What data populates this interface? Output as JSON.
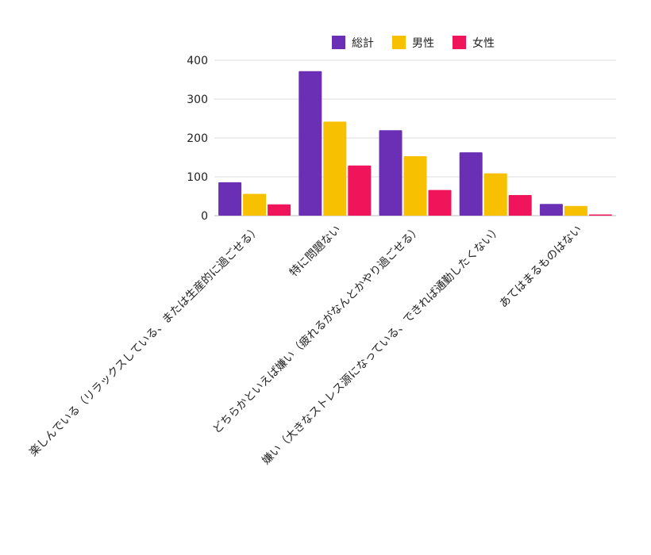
{
  "chart_data": {
    "type": "bar",
    "categories": [
      "楽しんでいる（リラックスしている、または生産的に過ごせる）",
      "特に問題ない",
      "どちらかといえば嫌い（疲れるがなんとかやり過ごせる）",
      "嫌い（大きなストレス源になっている、できれば通勤したくない）",
      "あてはまるものはない"
    ],
    "series": [
      {
        "name": "総計",
        "color": "#6a2fb5",
        "values": [
          86,
          372,
          220,
          163,
          30
        ]
      },
      {
        "name": "男性",
        "color": "#f7c000",
        "values": [
          56,
          242,
          153,
          109,
          25
        ]
      },
      {
        "name": "女性",
        "color": "#f0145a",
        "values": [
          29,
          129,
          66,
          53,
          3
        ]
      }
    ],
    "ylim": [
      0,
      400
    ],
    "yticks": [
      "0",
      "100",
      "200",
      "300",
      "400"
    ],
    "legend_position": "top",
    "grid": true
  }
}
